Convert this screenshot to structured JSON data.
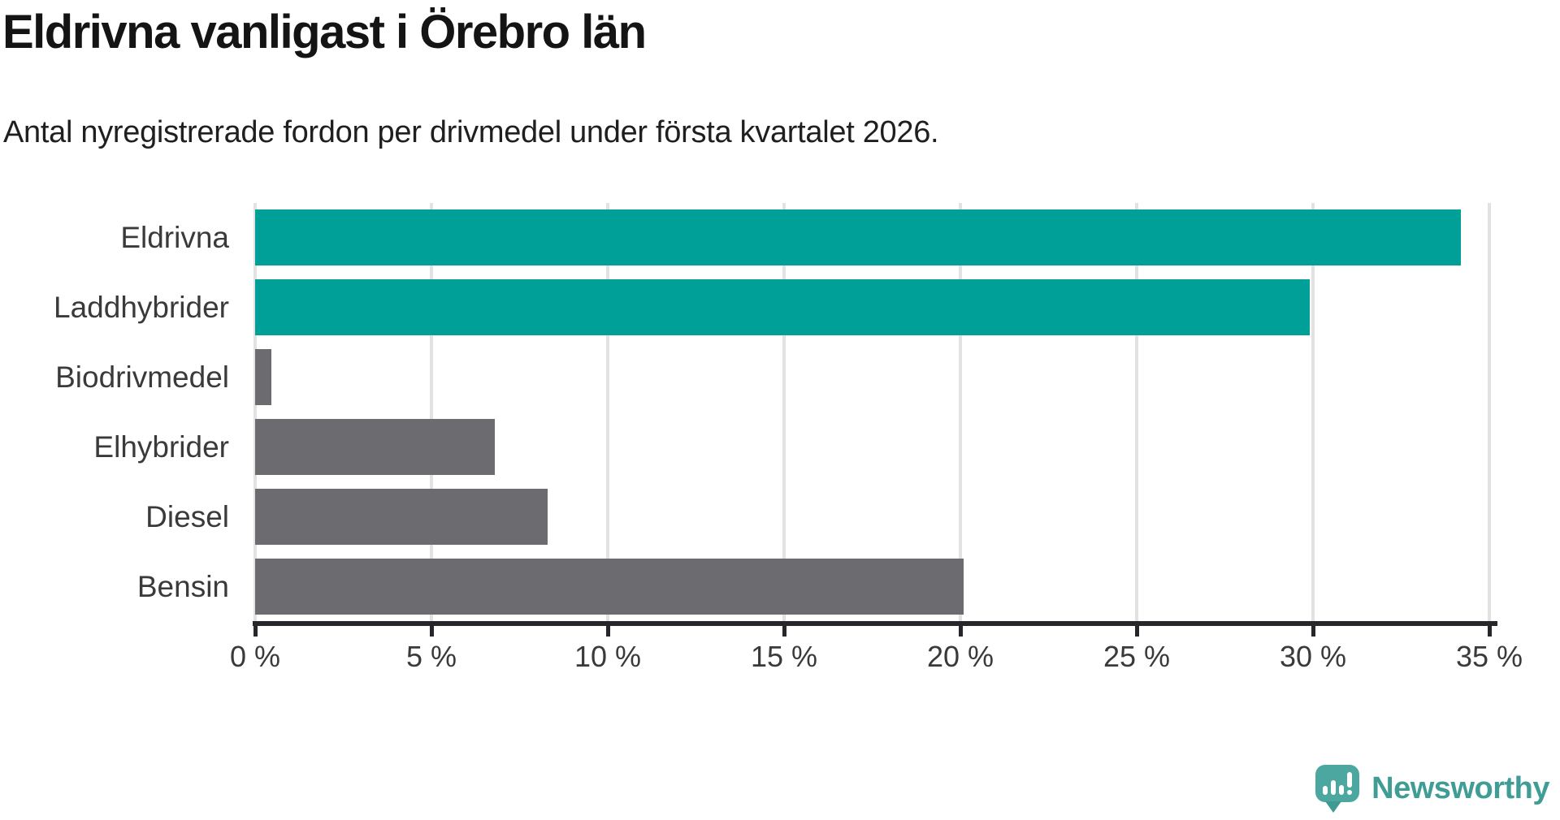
{
  "header": {
    "title": "Eldrivna vanligast i Örebro län",
    "subtitle": "Antal nyregistrerade fordon per drivmedel under första kvartalet 2026."
  },
  "chart_data": {
    "type": "bar",
    "orientation": "horizontal",
    "title": "Eldrivna vanligast i Örebro län",
    "subtitle": "Antal nyregistrerade fordon per drivmedel under första kvartalet 2026.",
    "categories": [
      "Eldrivna",
      "Laddhybrider",
      "Biodrivmedel",
      "Elhybrider",
      "Diesel",
      "Bensin"
    ],
    "values": [
      34.2,
      29.9,
      0.45,
      6.8,
      8.3,
      20.1
    ],
    "unit": "%",
    "bar_colors": [
      "#00A099",
      "#00A099",
      "#6B6B70",
      "#6B6B70",
      "#6B6B70",
      "#6B6B70"
    ],
    "highlight_color": "#00A099",
    "default_color": "#6B6B70",
    "xlim": [
      0,
      35.2
    ],
    "x_ticks": [
      0,
      5,
      10,
      15,
      20,
      25,
      30,
      35
    ],
    "x_tick_labels": [
      "0 %",
      "5 %",
      "10 %",
      "15 %",
      "20 %",
      "25 %",
      "30 %",
      "35 %"
    ],
    "grid": true,
    "gridline_color": "#E2E2E2",
    "axis_color": "#26262B",
    "legend": "none"
  },
  "branding": {
    "logo_text": "Newsworthy",
    "logo_text_color": "#3F9D96",
    "logo_mark_color": "#4BA7A0",
    "logo_mark_icon": "bar-chart-exclamation-bubble"
  }
}
